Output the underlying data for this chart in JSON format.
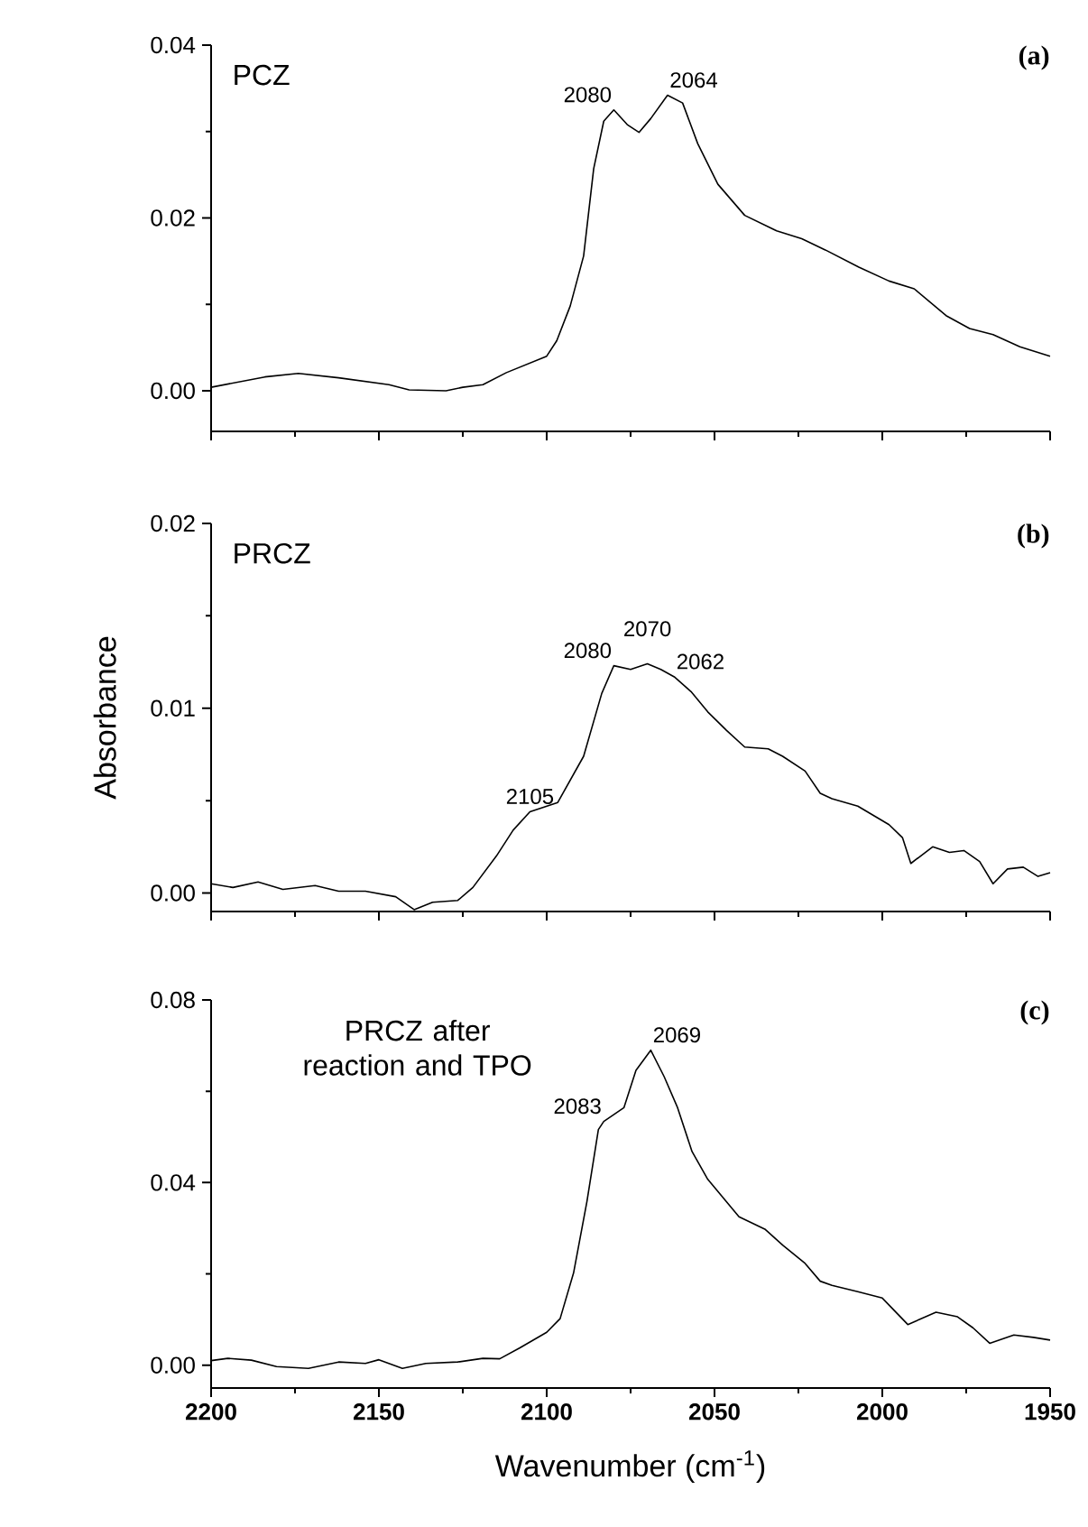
{
  "chart_data": [
    {
      "type": "line",
      "xlim": [
        2200,
        1950
      ],
      "ylim": [
        -0.0047,
        0.04
      ],
      "tick_labels": "y",
      "xticks": [
        2200,
        {
          "value": 2175,
          "label": null
        },
        2150,
        {
          "value": 2125,
          "label": null
        },
        2100,
        {
          "value": 2075,
          "label": null
        },
        2050,
        {
          "value": 2025,
          "label": null
        },
        2000,
        {
          "value": 1975,
          "label": null
        },
        1950
      ],
      "yticks": [
        {
          "value": 0,
          "label": "0.00"
        },
        {
          "value": 0.01,
          "label": null
        },
        0.02,
        {
          "value": 0.03,
          "label": null
        },
        0.04
      ],
      "annotations": [
        "PCZ",
        "(a)",
        {
          "text": "2080",
          "x": 2080,
          "y": 0.0325
        },
        {
          "text": "2064",
          "x": 2064,
          "y": 0.0342
        }
      ],
      "series": [
        {
          "color": "#000000",
          "x": [
            2200,
            2184,
            2174,
            2162,
            2147,
            2141,
            2130,
            2125,
            2119,
            2112,
            2100,
            2097,
            2093,
            2089,
            2086,
            2083,
            2080,
            2076,
            2072.5,
            2069,
            2064,
            2059.5,
            2055,
            2049,
            2041,
            2031.5,
            2024,
            2017,
            2007,
            1998,
            1990.5,
            1981,
            1974,
            1967,
            1959,
            1950
          ],
          "values": [
            0.0004,
            0.0016,
            0.002,
            0.0015,
            0.0007,
            0.0001,
            0.0,
            0.0004,
            0.0007,
            0.0021,
            0.004,
            0.0058,
            0.0098,
            0.0156,
            0.0257,
            0.0312,
            0.0325,
            0.0308,
            0.0299,
            0.0315,
            0.0342,
            0.0333,
            0.0286,
            0.0239,
            0.0203,
            0.0185,
            0.0176,
            0.0163,
            0.0143,
            0.0127,
            0.0118,
            0.0087,
            0.0072,
            0.0065,
            0.0051,
            0.004
          ]
        }
      ]
    },
    {
      "type": "line",
      "xlim": [
        2200,
        1950
      ],
      "ylim": [
        -0.001,
        0.02
      ],
      "tick_labels": "y",
      "ylabel": "Absorbance",
      "xticks": [
        2200,
        {
          "value": 2175,
          "label": null
        },
        2150,
        {
          "value": 2125,
          "label": null
        },
        2100,
        {
          "value": 2075,
          "label": null
        },
        2050,
        {
          "value": 2025,
          "label": null
        },
        2000,
        {
          "value": 1975,
          "label": null
        },
        1950
      ],
      "yticks": [
        {
          "value": 0,
          "label": "0.00"
        },
        {
          "value": 0.005,
          "label": null
        },
        0.01,
        {
          "value": 0.015,
          "label": null
        },
        0.02
      ],
      "annotations": [
        "PRCZ",
        "(b)",
        {
          "text": "2105",
          "x": 2105,
          "y": 0.0044
        },
        {
          "text": "2080",
          "x": 2080,
          "y": 0.0123
        },
        {
          "text": "2070",
          "x": 2070,
          "y": 0.0124
        },
        {
          "text": "2062",
          "x": 2062,
          "y": 0.0117
        }
      ],
      "series": [
        {
          "color": "#000000",
          "x": [
            2200,
            2193.5,
            2186,
            2178.6,
            2169,
            2162,
            2154,
            2145,
            2139.5,
            2134,
            2126.5,
            2122,
            2115,
            2110,
            2105,
            2096.7,
            2089,
            2083.6,
            2080,
            2075,
            2070,
            2066,
            2062,
            2057,
            2052,
            2046.4,
            2041,
            2034,
            2029.7,
            2023,
            2018.5,
            2015,
            2007.3,
            1998,
            1994,
            1991.5,
            1985,
            1980,
            1975.7,
            1971,
            1967,
            1962.7,
            1958,
            1953.6,
            1950
          ],
          "values": [
            0.0005,
            0.0003,
            0.0006,
            0.0002,
            0.0004,
            0.0001,
            0.0001,
            -0.0002,
            -0.0009,
            -0.0005,
            -0.0004,
            0.0003,
            0.002,
            0.0034,
            0.0044,
            0.0049,
            0.0074,
            0.0108,
            0.0123,
            0.0121,
            0.0124,
            0.0121,
            0.0117,
            0.0109,
            0.0098,
            0.0088,
            0.0079,
            0.0078,
            0.0074,
            0.0066,
            0.0054,
            0.0051,
            0.0047,
            0.0037,
            0.003,
            0.0016,
            0.0025,
            0.0022,
            0.0023,
            0.0017,
            0.0005,
            0.0013,
            0.0014,
            0.0009,
            0.0011
          ]
        }
      ]
    },
    {
      "type": "line",
      "xlim": [
        2200,
        1950
      ],
      "ylim": [
        -0.005,
        0.08
      ],
      "xlabel": "Wavenumber (cm$^{-1}$)",
      "xticks": [
        2200,
        {
          "value": 2175,
          "label": null
        },
        2150,
        {
          "value": 2125,
          "label": null
        },
        2100,
        {
          "value": 2075,
          "label": null
        },
        2050,
        {
          "value": 2025,
          "label": null
        },
        2000,
        {
          "value": 1975,
          "label": null
        },
        1950
      ],
      "yticks": [
        {
          "value": 0,
          "label": "0.00"
        },
        {
          "value": 0.02,
          "label": null
        },
        0.04,
        {
          "value": 0.06,
          "label": null
        },
        0.08
      ],
      "annotations": [
        "PRCZ after reaction and TPO",
        "(c)",
        {
          "text": "2083",
          "x": 2083,
          "y": 0.0534
        },
        {
          "text": "2069",
          "x": 2069,
          "y": 0.069
        }
      ],
      "series": [
        {
          "color": "#000000",
          "x": [
            2200,
            2195,
            2188,
            2180.5,
            2171,
            2162,
            2154,
            2150,
            2143,
            2136,
            2126.5,
            2119,
            2114,
            2108,
            2100,
            2096,
            2092,
            2088,
            2084.6,
            2083,
            2077,
            2073.4,
            2069,
            2065,
            2061,
            2056.7,
            2052,
            2042.7,
            2035,
            2029.7,
            2023,
            2018.5,
            2015,
            2007.3,
            2000,
            1992.4,
            1984,
            1977.6,
            1973,
            1968,
            1960.8,
            1955,
            1950
          ],
          "values": [
            0.001,
            0.0015,
            0.0011,
            -0.0003,
            -0.0007,
            0.0007,
            0.0004,
            0.0012,
            -0.0007,
            0.0004,
            0.0007,
            0.0015,
            0.0014,
            0.0038,
            0.0072,
            0.0102,
            0.0202,
            0.0359,
            0.0516,
            0.0534,
            0.0564,
            0.0646,
            0.069,
            0.0632,
            0.0564,
            0.0468,
            0.0407,
            0.0325,
            0.0298,
            0.0263,
            0.0223,
            0.0184,
            0.0175,
            0.0161,
            0.0147,
            0.0089,
            0.0116,
            0.0106,
            0.0082,
            0.0048,
            0.0066,
            0.0061,
            0.0055
          ]
        }
      ]
    }
  ]
}
